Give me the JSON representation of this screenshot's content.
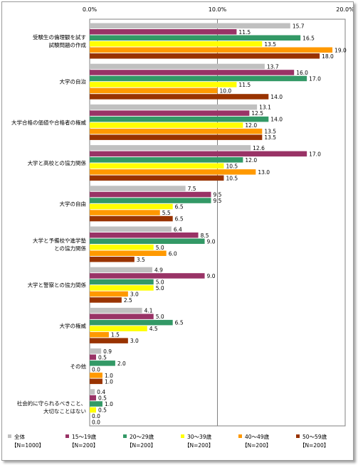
{
  "chart_data": {
    "type": "bar",
    "orientation": "horizontal",
    "x_ticks": [
      "0.0%",
      "10.0%",
      "20.0%"
    ],
    "xlim": [
      0,
      20
    ],
    "grid": true,
    "legend_position": "bottom",
    "categories": [
      [
        "受験生の倫理観を試す",
        "試験問題の作成"
      ],
      [
        "大学の自治"
      ],
      [
        "大学合格の価値や合格者の権威"
      ],
      [
        "大学と高校との協力関係"
      ],
      [
        "大学の自由"
      ],
      [
        "大学と予備校や進学塾",
        "との協力関係"
      ],
      [
        "大学と警察との協力関係"
      ],
      [
        "大学の権威"
      ],
      [
        "その他"
      ],
      [
        "社会的に守られるべきこと、",
        "大切なことはない"
      ]
    ],
    "series": [
      {
        "name": "全体",
        "n": "【N=1000】",
        "color": "#c0c0c0",
        "values": [
          15.7,
          13.7,
          13.1,
          12.6,
          7.5,
          6.4,
          4.9,
          4.1,
          0.9,
          0.4
        ]
      },
      {
        "name": "15～19歳",
        "n": "【N=200】",
        "color": "#993366",
        "values": [
          11.5,
          16.0,
          12.5,
          17.0,
          9.5,
          8.5,
          9.0,
          5.0,
          0.5,
          0.5
        ]
      },
      {
        "name": "20～29歳",
        "n": "【N=200】",
        "color": "#339966",
        "values": [
          16.5,
          17.0,
          14.0,
          12.0,
          9.5,
          9.0,
          5.0,
          6.5,
          2.0,
          1.0
        ]
      },
      {
        "name": "30～39歳",
        "n": "【N=200】",
        "color": "#ffff00",
        "values": [
          13.5,
          11.5,
          12.0,
          10.5,
          6.5,
          5.0,
          5.0,
          4.5,
          0.0,
          0.5
        ]
      },
      {
        "name": "40～49歳",
        "n": "【N=200】",
        "color": "#ff9900",
        "values": [
          19.0,
          10.0,
          13.5,
          13.0,
          5.5,
          6.0,
          3.0,
          1.5,
          1.0,
          0.0
        ]
      },
      {
        "name": "50～59歳",
        "n": "【N=200】",
        "color": "#993300",
        "values": [
          18.0,
          14.0,
          13.5,
          10.5,
          6.5,
          3.5,
          2.5,
          3.0,
          1.0,
          0.0
        ]
      }
    ]
  }
}
